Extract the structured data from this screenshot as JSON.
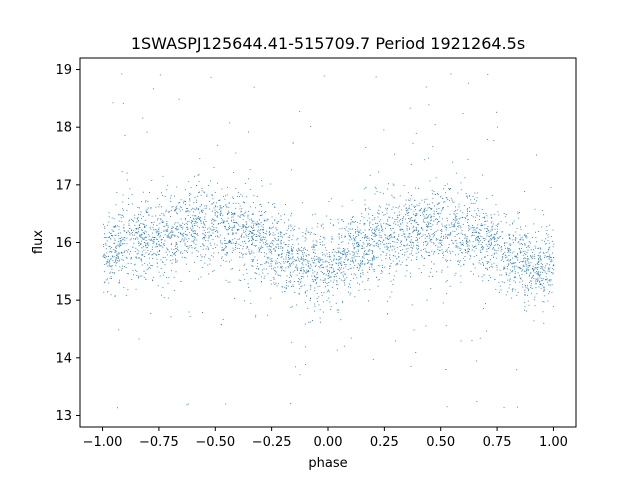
{
  "chart_data": {
    "type": "scatter",
    "title": "1SWASPJ125644.41-515709.7 Period 1921264.5s",
    "xlabel": "phase",
    "ylabel": "flux",
    "xlim": [
      -1.1,
      1.1
    ],
    "ylim": [
      12.8,
      19.2
    ],
    "x_ticks": [
      -1.0,
      -0.75,
      -0.5,
      -0.25,
      0.0,
      0.25,
      0.5,
      0.75,
      1.0
    ],
    "x_tick_labels": [
      "−1.00",
      "−0.75",
      "−0.50",
      "−0.25",
      "0.00",
      "0.25",
      "0.50",
      "0.75",
      "1.00"
    ],
    "y_ticks": [
      13,
      14,
      15,
      16,
      17,
      18,
      19
    ],
    "y_tick_labels": [
      "13",
      "14",
      "15",
      "16",
      "17",
      "18",
      "19"
    ],
    "grid": false,
    "legend": "none",
    "marker_color": "#1f77b4",
    "series": [
      {
        "phase_profile": {
          "phase": [
            -1.0,
            -0.875,
            -0.75,
            -0.625,
            -0.5,
            -0.375,
            -0.25,
            -0.125,
            0.0,
            0.125,
            0.25,
            0.375,
            0.5,
            0.625,
            0.75,
            0.875,
            1.0
          ],
          "median_flux": [
            15.75,
            16.0,
            16.1,
            16.25,
            16.3,
            16.15,
            15.95,
            15.6,
            15.55,
            15.85,
            16.1,
            16.25,
            16.3,
            16.15,
            15.95,
            15.6,
            15.55
          ],
          "flux_spread": [
            0.45,
            0.45,
            0.45,
            0.45,
            0.5,
            0.5,
            0.45,
            0.45,
            0.45,
            0.45,
            0.45,
            0.45,
            0.5,
            0.5,
            0.45,
            0.45,
            0.45
          ]
        }
      }
    ]
  }
}
